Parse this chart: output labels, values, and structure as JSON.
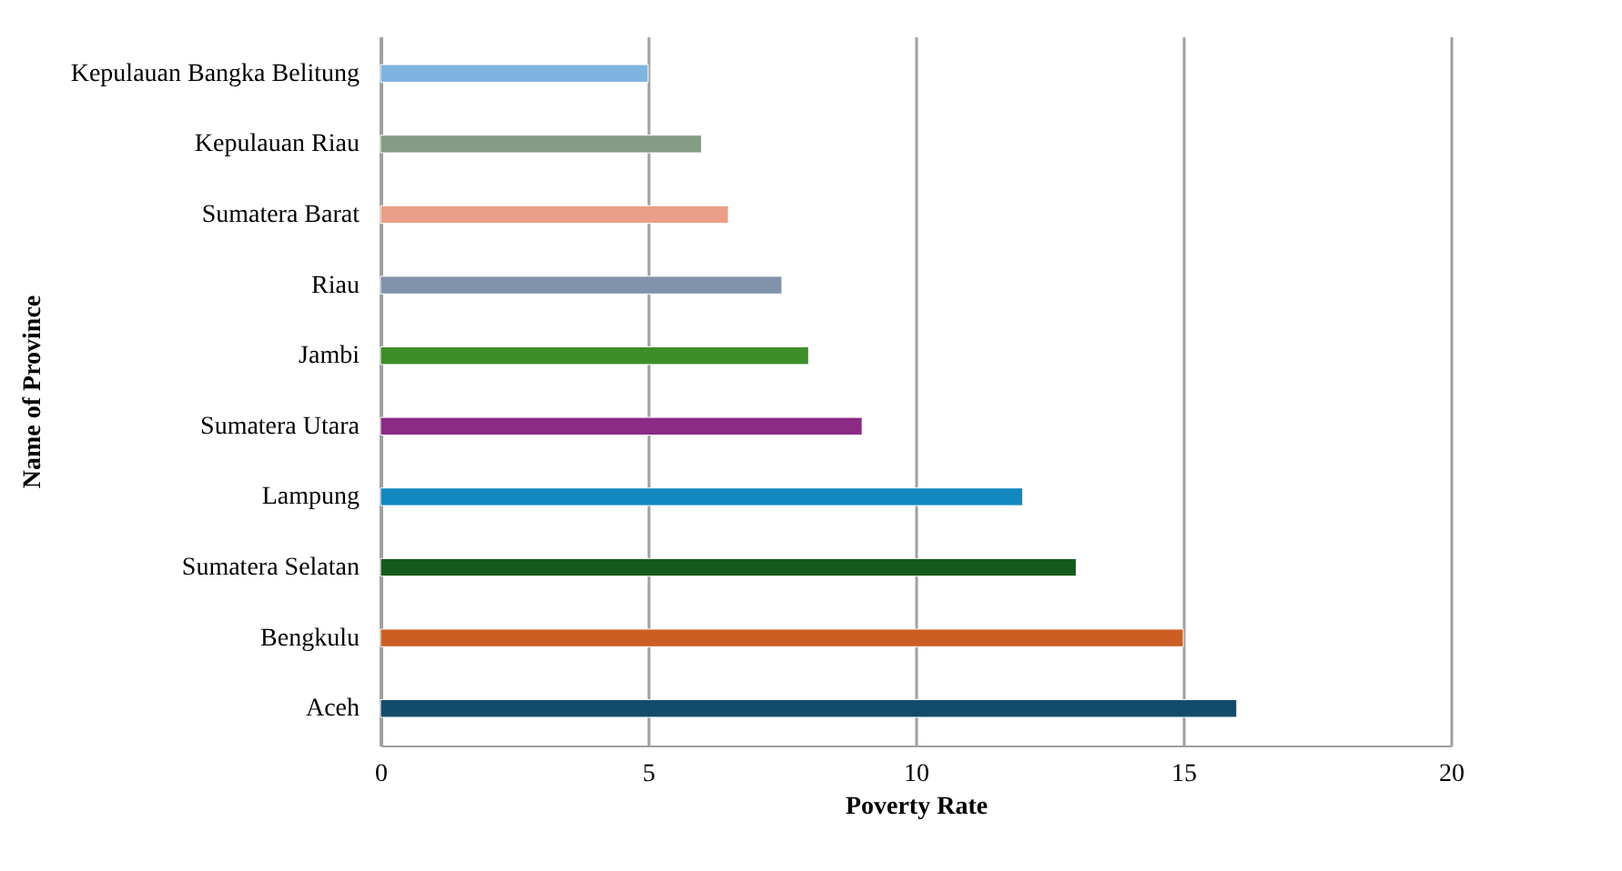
{
  "chart_data": {
    "type": "bar",
    "orientation": "horizontal",
    "xlabel": "Poverty Rate",
    "ylabel": "Name of Province",
    "categories": [
      "Kepulauan Bangka Belitung",
      "Kepulauan Riau",
      "Sumatera Barat",
      "Riau",
      "Jambi",
      "Sumatera Utara",
      "Lampung",
      "Sumatera Selatan",
      "Bengkulu",
      "Aceh"
    ],
    "values": [
      5,
      6,
      6.5,
      7.5,
      8,
      9,
      12,
      13,
      15,
      16
    ],
    "colors": [
      "#7fb4e0",
      "#849c84",
      "#eb9e88",
      "#8093aa",
      "#3e8e27",
      "#8c2a84",
      "#1388c0",
      "#145a1c",
      "#cc5e24",
      "#134b6c"
    ],
    "xlim": [
      0,
      20
    ],
    "xticks": [
      0,
      5,
      10,
      15,
      20
    ],
    "grid": "x"
  }
}
